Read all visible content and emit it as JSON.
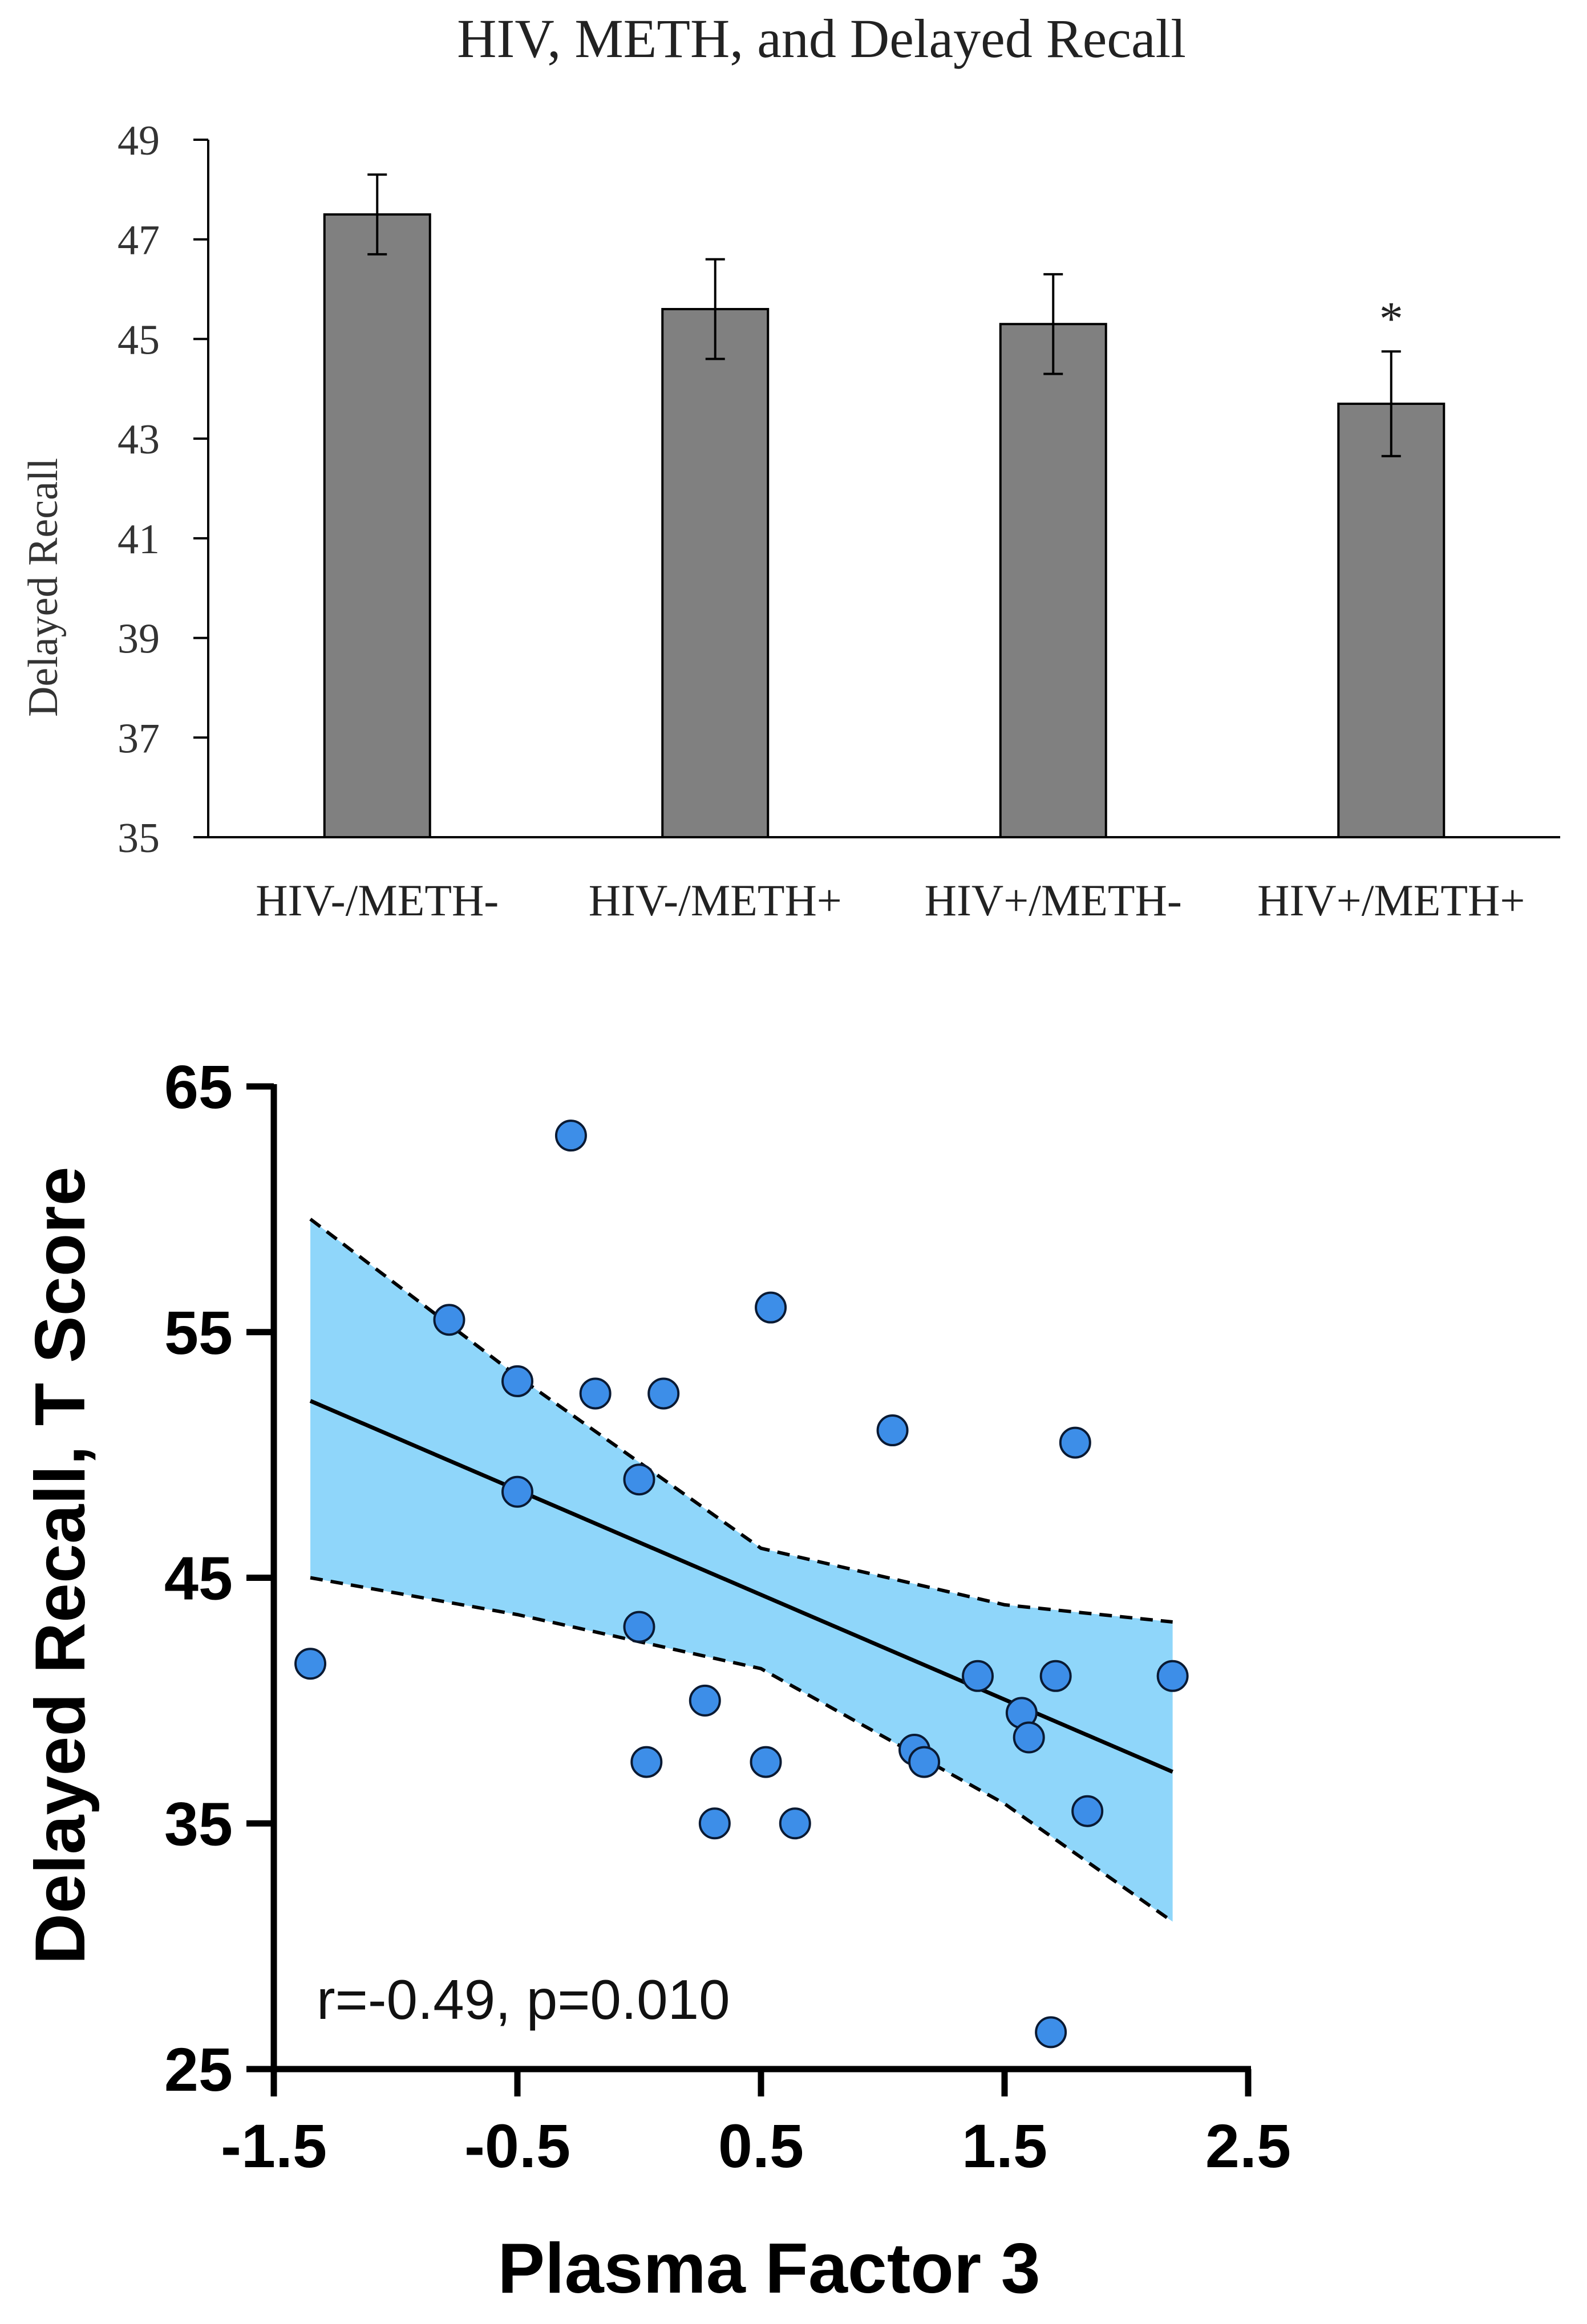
{
  "chart_data": [
    {
      "type": "bar",
      "title": "HIV, METH, and Delayed Recall",
      "xlabel": "",
      "ylabel": "Delayed Recall",
      "ylim": [
        35,
        49
      ],
      "yticks": [
        35,
        37,
        39,
        41,
        43,
        45,
        47,
        49
      ],
      "categories": [
        "HIV-/METH-",
        "HIV-/METH+",
        "HIV+/METH-",
        "HIV+/METH+"
      ],
      "values": [
        47.5,
        45.6,
        45.3,
        43.7
      ],
      "errors": [
        0.8,
        1.0,
        1.0,
        1.05
      ],
      "annotations": [
        {
          "category": "HIV+/METH+",
          "text": "*"
        }
      ],
      "bar_color": "#808080",
      "grid": false,
      "legend": "none"
    },
    {
      "type": "scatter",
      "title": "",
      "xlabel": "Plasma Factor 3",
      "ylabel": "Delayed Recall, T Score",
      "xlim": [
        -1.5,
        2.5
      ],
      "ylim": [
        25,
        65
      ],
      "xticks": [
        -1.5,
        -0.5,
        0.5,
        1.5,
        2.5
      ],
      "xtick_labels": [
        "-1.5",
        "-0.5",
        "0.5",
        "1.5",
        "2.5"
      ],
      "yticks": [
        25,
        35,
        45,
        55,
        65
      ],
      "annotation": "r=-0.49, p=0.010",
      "points": [
        {
          "x": -1.35,
          "y": 41.5
        },
        {
          "x": -0.78,
          "y": 55.5
        },
        {
          "x": -0.5,
          "y": 53.0
        },
        {
          "x": -0.5,
          "y": 48.5
        },
        {
          "x": -0.28,
          "y": 63.0
        },
        {
          "x": -0.18,
          "y": 52.5
        },
        {
          "x": 0.0,
          "y": 49.0
        },
        {
          "x": 0.0,
          "y": 43.0
        },
        {
          "x": 0.03,
          "y": 37.5
        },
        {
          "x": 0.1,
          "y": 52.5
        },
        {
          "x": 0.27,
          "y": 40.0
        },
        {
          "x": 0.31,
          "y": 35.0
        },
        {
          "x": 0.52,
          "y": 37.5
        },
        {
          "x": 0.54,
          "y": 56.0
        },
        {
          "x": 0.64,
          "y": 35.0
        },
        {
          "x": 1.04,
          "y": 51.0
        },
        {
          "x": 1.13,
          "y": 38.0
        },
        {
          "x": 1.17,
          "y": 37.5
        },
        {
          "x": 1.39,
          "y": 41.0
        },
        {
          "x": 1.57,
          "y": 39.5
        },
        {
          "x": 1.6,
          "y": 38.5
        },
        {
          "x": 1.69,
          "y": 26.5
        },
        {
          "x": 1.71,
          "y": 41.0
        },
        {
          "x": 1.79,
          "y": 50.5
        },
        {
          "x": 1.84,
          "y": 35.5
        },
        {
          "x": 2.19,
          "y": 41.0
        }
      ],
      "regression": {
        "x": [
          -1.35,
          2.19
        ],
        "y": [
          52.2,
          37.1
        ]
      },
      "confidence_band": {
        "x": [
          -1.35,
          -0.5,
          0.5,
          1.5,
          2.19
        ],
        "upper": [
          59.6,
          53.2,
          46.2,
          43.9,
          43.2
        ],
        "lower": [
          45.0,
          43.5,
          41.3,
          35.8,
          31.0
        ]
      },
      "point_color": "#3d8ee8",
      "band_color": "#8fd6fa",
      "grid": false,
      "legend": "none"
    }
  ]
}
